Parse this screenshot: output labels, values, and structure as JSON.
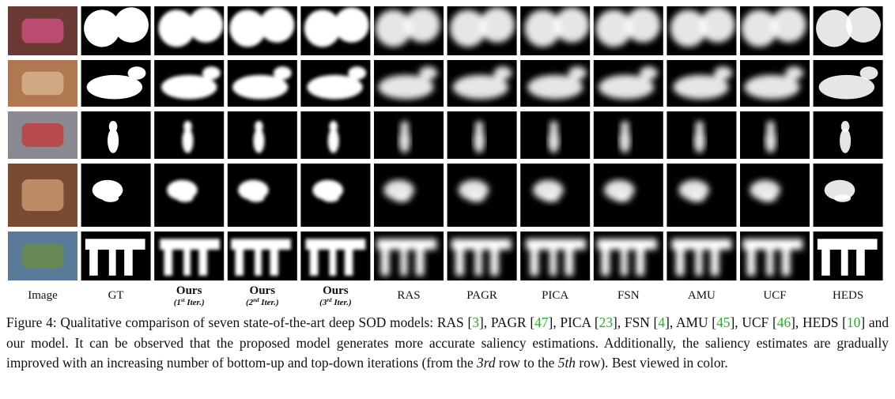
{
  "figure": {
    "columns": [
      {
        "label": "Image"
      },
      {
        "label": "GT"
      },
      {
        "label": "Ours",
        "sub": [
          "(1",
          "st",
          " Iter.)"
        ]
      },
      {
        "label": "Ours",
        "sub": [
          "(2",
          "nd",
          " Iter.)"
        ]
      },
      {
        "label": "Ours",
        "sub": [
          "(3",
          "rd",
          " Iter.)"
        ]
      },
      {
        "label": "RAS"
      },
      {
        "label": "PAGR"
      },
      {
        "label": "PICA"
      },
      {
        "label": "FSN"
      },
      {
        "label": "AMU"
      },
      {
        "label": "UCF"
      },
      {
        "label": "HEDS"
      }
    ],
    "caption": {
      "label": "Figure 4:",
      "parts": [
        {
          "text": " Qualitative comparison of seven state-of-the-art deep SOD models: RAS ["
        },
        {
          "cite": "3"
        },
        {
          "text": "], PAGR ["
        },
        {
          "cite": "47"
        },
        {
          "text": "], PICA ["
        },
        {
          "cite": "23"
        },
        {
          "text": "], FSN ["
        },
        {
          "cite": "4"
        },
        {
          "text": "], AMU ["
        },
        {
          "cite": "45"
        },
        {
          "text": "], UCF ["
        },
        {
          "cite": "46"
        },
        {
          "text": "], HEDS ["
        },
        {
          "cite": "10"
        },
        {
          "text": "] and our model. It can be observed that the proposed model generates more accurate saliency estimations. Additionally, the saliency estimates are gradually improved with an increasing number of bottom-up and top-down iterations (from the "
        },
        {
          "em": "3rd"
        },
        {
          "text": " row to the "
        },
        {
          "em": "5th"
        },
        {
          "text": " row). Best viewed in color."
        }
      ]
    }
  }
}
